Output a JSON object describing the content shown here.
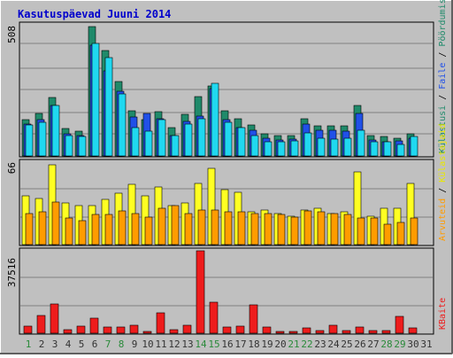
{
  "title": "Kasutuspäevad Juuni 2014",
  "colors": {
    "background": "#c0c0c0",
    "frame": "#ffffff",
    "title": "#0000cc",
    "grid": "#808080",
    "kulastusi": "#1f8a6a",
    "faile": "#2050e8",
    "poordumisi": "#20d8f0",
    "kulastajaid": "#ffff22",
    "arvuteid": "#ff9c00",
    "kbaite": "#ee1c1c",
    "weekend_label": "#2a8a3a",
    "weekday_label": "#333333"
  },
  "panels": {
    "top": {
      "axis_max_label": "508",
      "legend": [
        "Külastusi",
        "Faile",
        "Pöördumisi"
      ]
    },
    "middle": {
      "axis_max_label": "66",
      "legend": [
        "Arvuteid",
        "Külastajaid"
      ]
    },
    "bottom": {
      "axis_max_label": "37516",
      "legend": [
        "KBaite"
      ]
    }
  },
  "chart_data": [
    {
      "type": "bar",
      "title": "Kasutuspäevad Juuni 2014",
      "ylim": [
        0,
        508
      ],
      "categories": [
        "1",
        "2",
        "3",
        "4",
        "5",
        "6",
        "7",
        "8",
        "9",
        "10",
        "11",
        "12",
        "13",
        "14",
        "15",
        "16",
        "17",
        "18",
        "19",
        "20",
        "21",
        "22",
        "23",
        "24",
        "25",
        "26",
        "27",
        "28",
        "29",
        "30",
        "31"
      ],
      "series": [
        {
          "name": "Külastusi",
          "values": [
            140,
            165,
            225,
            105,
            95,
            500,
            410,
            290,
            175,
            140,
            170,
            110,
            160,
            230,
            270,
            175,
            145,
            120,
            85,
            78,
            80,
            145,
            115,
            115,
            115,
            195,
            80,
            75,
            70,
            85,
            0
          ]
        },
        {
          "name": "Faile",
          "values": [
            125,
            140,
            195,
            85,
            80,
            430,
            330,
            250,
            150,
            165,
            145,
            80,
            135,
            155,
            260,
            140,
            110,
            100,
            70,
            63,
            65,
            125,
            100,
            100,
            95,
            165,
            63,
            55,
            60,
            70,
            0
          ]
        },
        {
          "name": "Pöördumisi",
          "values": [
            120,
            130,
            195,
            80,
            75,
            435,
            380,
            240,
            110,
            95,
            140,
            80,
            125,
            145,
            280,
            130,
            110,
            80,
            55,
            55,
            60,
            90,
            70,
            65,
            70,
            100,
            55,
            55,
            45,
            75,
            0
          ]
        }
      ]
    },
    {
      "type": "bar",
      "ylim": [
        0,
        66
      ],
      "categories": [
        "1",
        "2",
        "3",
        "4",
        "5",
        "6",
        "7",
        "8",
        "9",
        "10",
        "11",
        "12",
        "13",
        "14",
        "15",
        "16",
        "17",
        "18",
        "19",
        "20",
        "21",
        "22",
        "23",
        "24",
        "25",
        "26",
        "27",
        "28",
        "29",
        "30",
        "31"
      ],
      "series": [
        {
          "name": "Külastajaid",
          "values": [
            39,
            37,
            64,
            33,
            31,
            31,
            36,
            41,
            48,
            39,
            46,
            31,
            33,
            49,
            61,
            44,
            42,
            26,
            28,
            25,
            23,
            28,
            29,
            25,
            26,
            58,
            23,
            29,
            29,
            49,
            0
          ]
        },
        {
          "name": "Arvuteid",
          "values": [
            25,
            26,
            34,
            21,
            19,
            24,
            24,
            27,
            25,
            22,
            29,
            31,
            25,
            28,
            28,
            26,
            26,
            25,
            25,
            24,
            22,
            27,
            26,
            25,
            24,
            21,
            21,
            16,
            18,
            21,
            0
          ]
        }
      ]
    },
    {
      "type": "bar",
      "ylim": [
        0,
        37516
      ],
      "categories": [
        "1",
        "2",
        "3",
        "4",
        "5",
        "6",
        "7",
        "8",
        "9",
        "10",
        "11",
        "12",
        "13",
        "14",
        "15",
        "16",
        "17",
        "18",
        "19",
        "20",
        "21",
        "22",
        "23",
        "24",
        "25",
        "26",
        "27",
        "28",
        "29",
        "30",
        "31"
      ],
      "series": [
        {
          "name": "KBaite",
          "values": [
            3400,
            8200,
            13200,
            1500,
            3400,
            6700,
            2800,
            3000,
            3600,
            650,
            9200,
            1500,
            3500,
            37516,
            14000,
            2700,
            3100,
            12800,
            2700,
            990,
            890,
            2300,
            1350,
            3800,
            1100,
            2900,
            1300,
            1200,
            7600,
            2400,
            0
          ]
        }
      ]
    }
  ]
}
